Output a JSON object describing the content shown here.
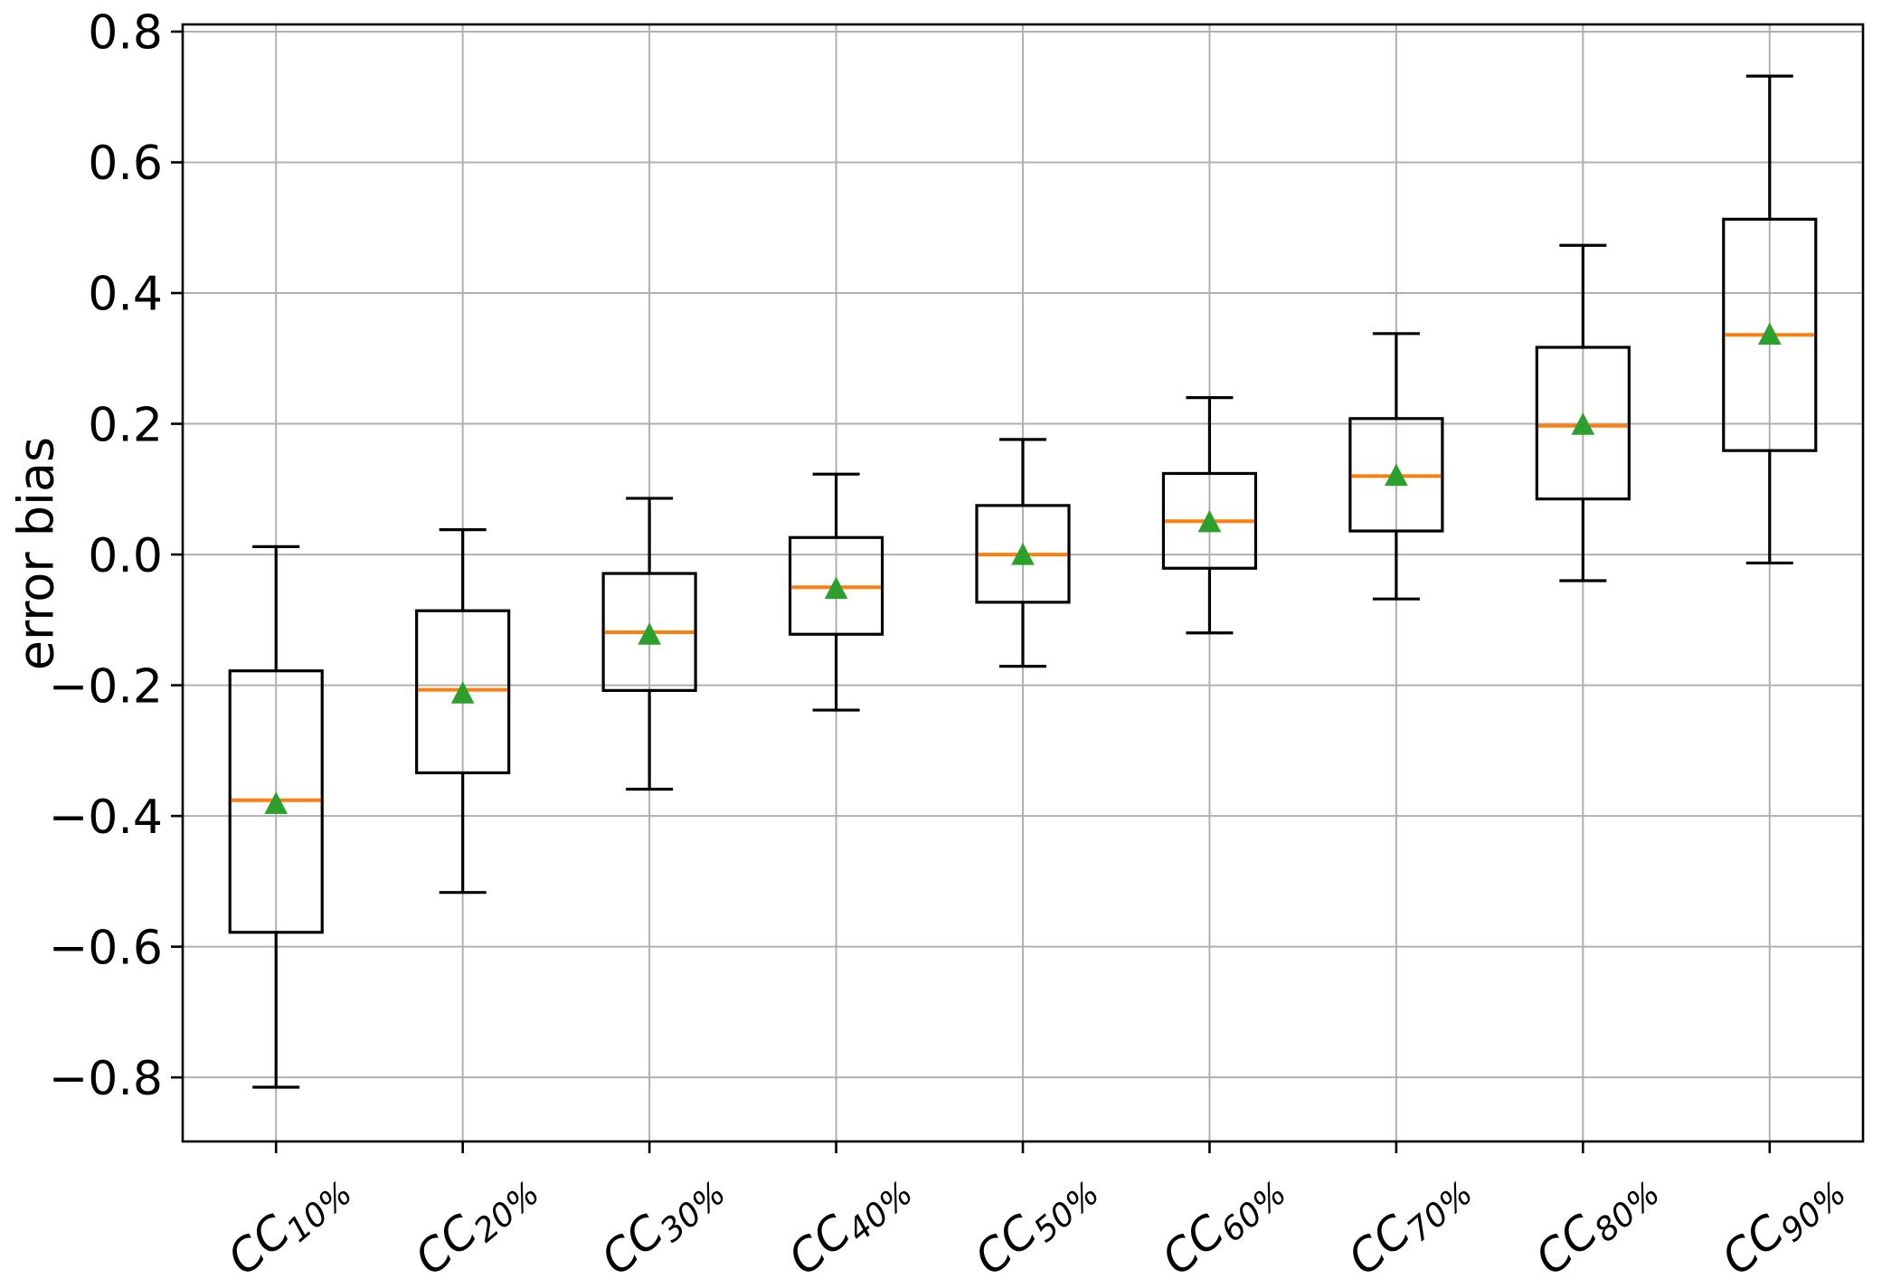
{
  "figure": {
    "background": "#ffffff"
  },
  "chart_data": {
    "type": "box",
    "title": "",
    "xlabel": "",
    "ylabel": "error bias",
    "grid": true,
    "legend": "none",
    "ylim": [
      -0.898,
      0.811
    ],
    "ytick_values": [
      0.8,
      0.6,
      0.4,
      0.2,
      0.0,
      -0.2,
      -0.4,
      -0.6,
      -0.8
    ],
    "ytick_labels": [
      "0.8",
      "0.6",
      "0.4",
      "0.2",
      "0.0",
      "−0.2",
      "−0.4",
      "−0.6",
      "−0.8"
    ],
    "categories": [
      {
        "base": "CC",
        "sub": "10%"
      },
      {
        "base": "CC",
        "sub": "20%"
      },
      {
        "base": "CC",
        "sub": "30%"
      },
      {
        "base": "CC",
        "sub": "40%"
      },
      {
        "base": "CC",
        "sub": "50%"
      },
      {
        "base": "CC",
        "sub": "60%"
      },
      {
        "base": "CC",
        "sub": "70%"
      },
      {
        "base": "CC",
        "sub": "80%"
      },
      {
        "base": "CC",
        "sub": "90%"
      }
    ],
    "series": [
      {
        "label": "CC10%",
        "whisker_low": -0.815,
        "q1": -0.578,
        "median": -0.376,
        "mean": -0.381,
        "q3": -0.178,
        "whisker_high": 0.012
      },
      {
        "label": "CC20%",
        "whisker_low": -0.517,
        "q1": -0.334,
        "median": -0.207,
        "mean": -0.212,
        "q3": -0.086,
        "whisker_high": 0.038
      },
      {
        "label": "CC30%",
        "whisker_low": -0.359,
        "q1": -0.208,
        "median": -0.119,
        "mean": -0.122,
        "q3": -0.029,
        "whisker_high": 0.086
      },
      {
        "label": "CC40%",
        "whisker_low": -0.238,
        "q1": -0.122,
        "median": -0.05,
        "mean": -0.052,
        "q3": 0.026,
        "whisker_high": 0.123
      },
      {
        "label": "CC50%",
        "whisker_low": -0.171,
        "q1": -0.073,
        "median": 0.0,
        "mean": 0.0,
        "q3": 0.075,
        "whisker_high": 0.176
      },
      {
        "label": "CC60%",
        "whisker_low": -0.12,
        "q1": -0.021,
        "median": 0.051,
        "mean": 0.05,
        "q3": 0.124,
        "whisker_high": 0.24
      },
      {
        "label": "CC70%",
        "whisker_low": -0.068,
        "q1": 0.036,
        "median": 0.12,
        "mean": 0.121,
        "q3": 0.208,
        "whisker_high": 0.338
      },
      {
        "label": "CC80%",
        "whisker_low": -0.04,
        "q1": 0.085,
        "median": 0.197,
        "mean": 0.199,
        "q3": 0.317,
        "whisker_high": 0.473
      },
      {
        "label": "CC90%",
        "whisker_low": -0.013,
        "q1": 0.159,
        "median": 0.336,
        "mean": 0.337,
        "q3": 0.513,
        "whisker_high": 0.732
      }
    ],
    "colors": {
      "box_line": "#000000",
      "whisker_line": "#000000",
      "median_line": "#ff7f0e",
      "mean_marker": "#2ca02c",
      "grid_line": "#b0b0b0",
      "spine": "#000000",
      "tick_text": "#000000"
    }
  }
}
